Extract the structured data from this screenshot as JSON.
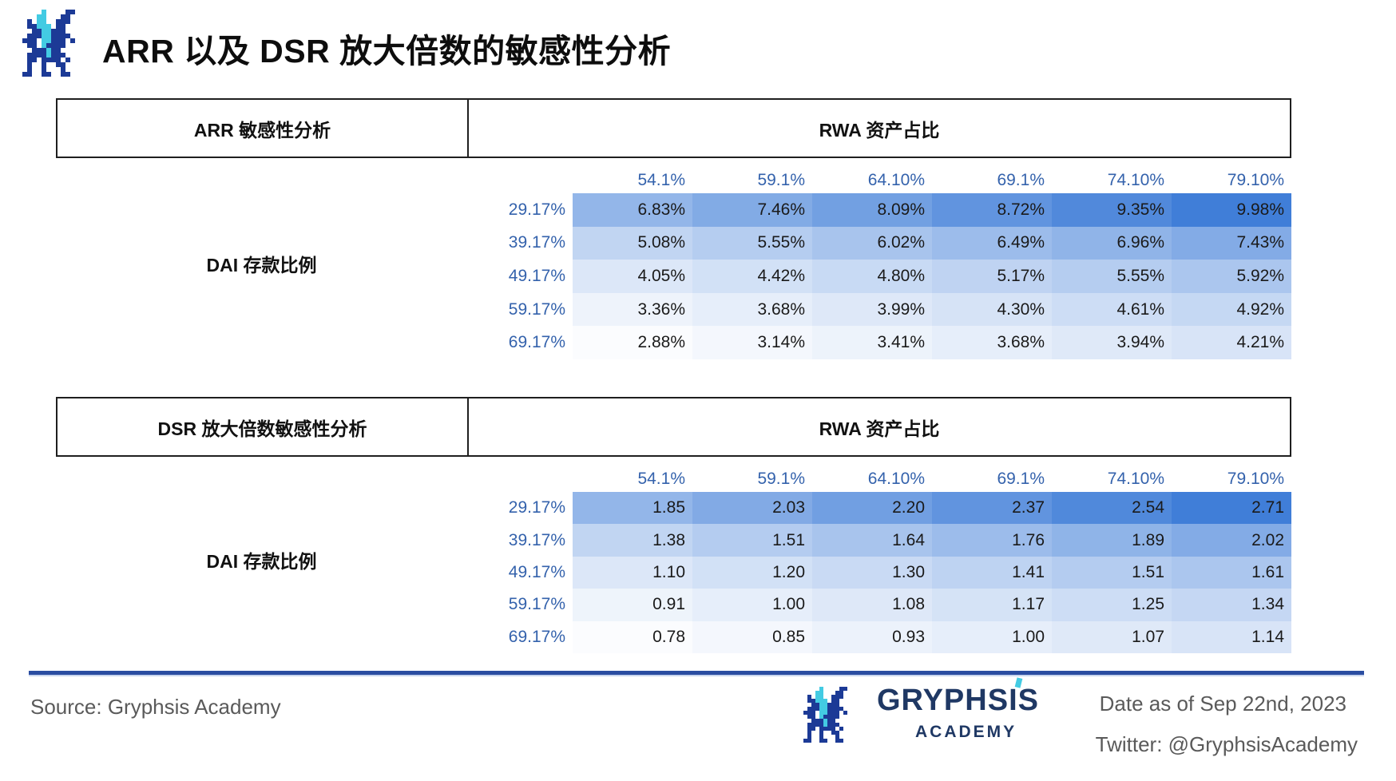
{
  "page": {
    "title": "ARR 以及 DSR 放大倍数的敏感性分析"
  },
  "chart_data": [
    {
      "type": "heatmap",
      "title": "ARR 敏感性分析",
      "columns_header": "RWA 资产占比",
      "rows_header": "DAI 存款比例",
      "columns": [
        "54.1%",
        "59.1%",
        "64.10%",
        "69.1%",
        "74.10%",
        "79.10%"
      ],
      "rows": [
        "29.17%",
        "39.17%",
        "49.17%",
        "59.17%",
        "69.17%"
      ],
      "values": [
        [
          "6.83%",
          "7.46%",
          "8.09%",
          "8.72%",
          "9.35%",
          "9.98%"
        ],
        [
          "5.08%",
          "5.55%",
          "6.02%",
          "6.49%",
          "6.96%",
          "7.43%"
        ],
        [
          "4.05%",
          "4.42%",
          "4.80%",
          "5.17%",
          "5.55%",
          "5.92%"
        ],
        [
          "3.36%",
          "3.68%",
          "3.99%",
          "4.30%",
          "4.61%",
          "4.92%"
        ],
        [
          "2.88%",
          "3.14%",
          "3.41%",
          "3.68%",
          "3.94%",
          "4.21%"
        ]
      ],
      "color_scale": {
        "min": 2.88,
        "max": 9.98,
        "min_color": "#FBFCFE",
        "max_color": "#407ED8"
      },
      "legend_position": "none",
      "grid": false
    },
    {
      "type": "heatmap",
      "title": "DSR 放大倍数敏感性分析",
      "columns_header": "RWA 资产占比",
      "rows_header": "DAI 存款比例",
      "columns": [
        "54.1%",
        "59.1%",
        "64.10%",
        "69.1%",
        "74.10%",
        "79.10%"
      ],
      "rows": [
        "29.17%",
        "39.17%",
        "49.17%",
        "59.17%",
        "69.17%"
      ],
      "values": [
        [
          "1.85",
          "2.03",
          "2.20",
          "2.37",
          "2.54",
          "2.71"
        ],
        [
          "1.38",
          "1.51",
          "1.64",
          "1.76",
          "1.89",
          "2.02"
        ],
        [
          "1.10",
          "1.20",
          "1.30",
          "1.41",
          "1.51",
          "1.61"
        ],
        [
          "0.91",
          "1.00",
          "1.08",
          "1.17",
          "1.25",
          "1.34"
        ],
        [
          "0.78",
          "0.85",
          "0.93",
          "1.00",
          "1.07",
          "1.14"
        ]
      ],
      "color_scale": {
        "min": 0.78,
        "max": 2.71,
        "min_color": "#FBFCFE",
        "max_color": "#407ED8"
      },
      "legend_position": "none",
      "grid": false
    }
  ],
  "footer": {
    "source": "Source: Gryphsis Academy",
    "brand": "GRYPHSIS",
    "brand_sub": "ACADEMY",
    "date": "Date as of Sep 22nd, 2023",
    "twitter": "Twitter: @GryphsisAcademy"
  },
  "colors": {
    "heat_min": "#FBFCFE",
    "heat_max": "#407ED8",
    "label_blue": "#3462AC",
    "text_dark": "#1A1A1A",
    "navy": "#1F3864",
    "gray": "#5A5A5A",
    "line_blue": "#2A4DA1",
    "line_light": "#C9D6EE",
    "logo_navy": "#1C3A96",
    "logo_cyan": "#43CBE3"
  }
}
